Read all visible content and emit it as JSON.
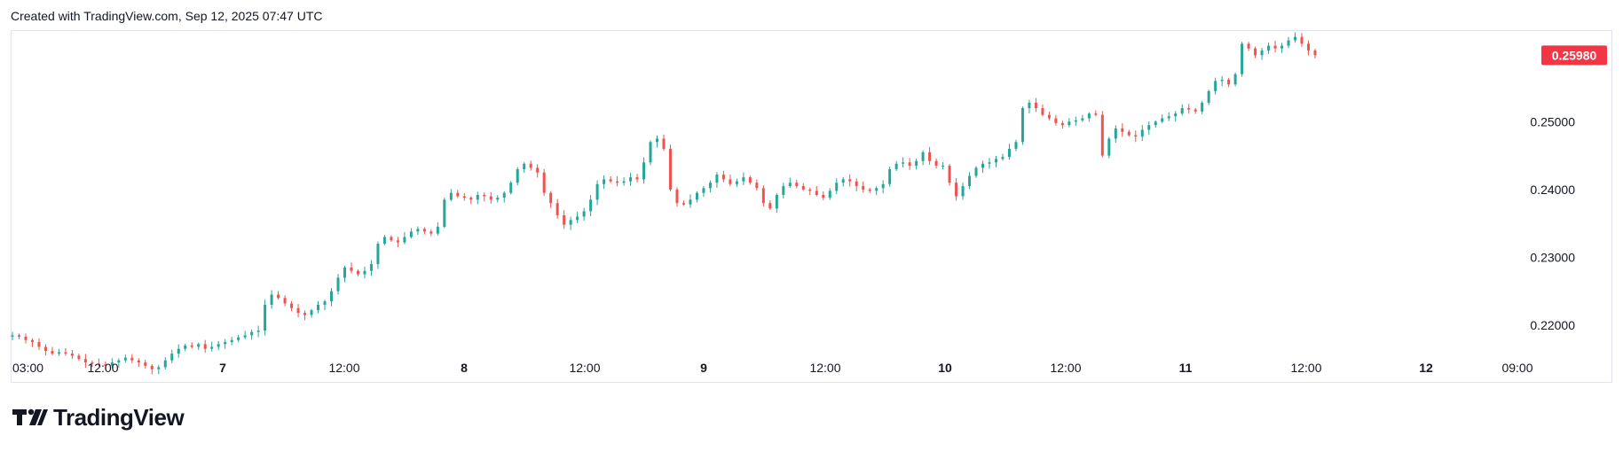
{
  "header": {
    "caption": "Created with TradingView.com, Sep 12, 2025 07:47 UTC"
  },
  "brand": {
    "name": "TradingView",
    "logo_icon": "tradingview-logo-icon"
  },
  "colors": {
    "up": "#26a69a",
    "down": "#ef5350",
    "price_tag": "#f23645",
    "text": "#131722",
    "border": "#e0e3eb"
  },
  "chart_data": {
    "type": "candlestick",
    "title": "",
    "xlabel": "",
    "ylabel": "",
    "x_ticks": [
      {
        "label": "03:00",
        "bold": false
      },
      {
        "label": "12:00",
        "bold": false
      },
      {
        "label": "7",
        "bold": true
      },
      {
        "label": "12:00",
        "bold": false
      },
      {
        "label": "8",
        "bold": true
      },
      {
        "label": "12:00",
        "bold": false
      },
      {
        "label": "9",
        "bold": true
      },
      {
        "label": "12:00",
        "bold": false
      },
      {
        "label": "10",
        "bold": true
      },
      {
        "label": "12:00",
        "bold": false
      },
      {
        "label": "11",
        "bold": true
      },
      {
        "label": "12:00",
        "bold": false
      },
      {
        "label": "12",
        "bold": true
      },
      {
        "label": "09:00",
        "bold": false
      }
    ],
    "y_ticks": [
      "0.22000",
      "0.23000",
      "0.24000",
      "0.25000"
    ],
    "ylim": [
      0.2115,
      0.2635
    ],
    "last_price": "0.25980",
    "close_series": [
      0.2185,
      0.2183,
      0.2178,
      0.2175,
      0.2168,
      0.2162,
      0.2158,
      0.216,
      0.2158,
      0.2155,
      0.215,
      0.2145,
      0.2143,
      0.2142,
      0.214,
      0.2145,
      0.2148,
      0.2152,
      0.2148,
      0.2145,
      0.214,
      0.2135,
      0.2138,
      0.2148,
      0.2158,
      0.2165,
      0.217,
      0.2168,
      0.2172,
      0.2165,
      0.2168,
      0.2172,
      0.2175,
      0.2178,
      0.2182,
      0.2185,
      0.219,
      0.2192,
      0.223,
      0.2245,
      0.224,
      0.2232,
      0.2225,
      0.2218,
      0.2215,
      0.2222,
      0.223,
      0.2235,
      0.225,
      0.227,
      0.2285,
      0.228,
      0.2275,
      0.228,
      0.229,
      0.232,
      0.233,
      0.2325,
      0.2322,
      0.233,
      0.2338,
      0.2342,
      0.2338,
      0.2335,
      0.2345,
      0.2385,
      0.2395,
      0.239,
      0.2388,
      0.2385,
      0.2392,
      0.239,
      0.2385,
      0.2388,
      0.2395,
      0.241,
      0.243,
      0.2438,
      0.2432,
      0.2425,
      0.2395,
      0.238,
      0.2362,
      0.2348,
      0.2355,
      0.236,
      0.2368,
      0.2385,
      0.2408,
      0.2415,
      0.2412,
      0.241,
      0.2412,
      0.2418,
      0.2415,
      0.244,
      0.247,
      0.2475,
      0.246,
      0.24,
      0.238,
      0.2378,
      0.2385,
      0.2395,
      0.2402,
      0.241,
      0.2422,
      0.2415,
      0.2408,
      0.2412,
      0.2418,
      0.241,
      0.2402,
      0.238,
      0.2372,
      0.2392,
      0.2405,
      0.241,
      0.2405,
      0.24,
      0.2398,
      0.2392,
      0.2388,
      0.2398,
      0.241,
      0.2415,
      0.2412,
      0.2405,
      0.24,
      0.2398,
      0.2402,
      0.2408,
      0.243,
      0.2438,
      0.244,
      0.2435,
      0.2442,
      0.2455,
      0.2442,
      0.2435,
      0.2435,
      0.241,
      0.239,
      0.2405,
      0.242,
      0.2432,
      0.2438,
      0.244,
      0.2445,
      0.2448,
      0.246,
      0.247,
      0.252,
      0.2528,
      0.252,
      0.251,
      0.2505,
      0.2498,
      0.2495,
      0.25,
      0.2502,
      0.2505,
      0.2512,
      0.251,
      0.245,
      0.2475,
      0.249,
      0.2485,
      0.248,
      0.2478,
      0.2488,
      0.2495,
      0.25,
      0.2505,
      0.2508,
      0.2512,
      0.252,
      0.2518,
      0.2515,
      0.2528,
      0.2545,
      0.256,
      0.2562,
      0.2555,
      0.257,
      0.2615,
      0.2608,
      0.2598,
      0.2605,
      0.2612,
      0.2608,
      0.2612,
      0.262,
      0.2625,
      0.2615,
      0.2605,
      0.2598
    ]
  }
}
